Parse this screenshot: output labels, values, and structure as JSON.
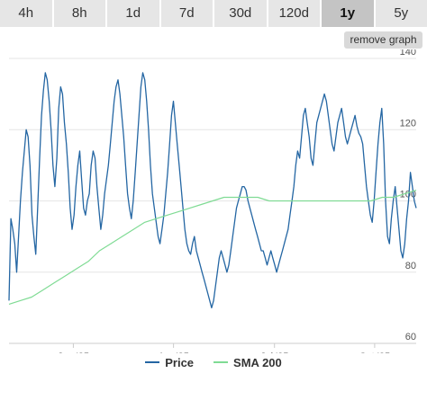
{
  "tabs": [
    {
      "label": "4h",
      "active": false
    },
    {
      "label": "8h",
      "active": false
    },
    {
      "label": "1d",
      "active": false
    },
    {
      "label": "7d",
      "active": false
    },
    {
      "label": "30d",
      "active": false
    },
    {
      "label": "120d",
      "active": false
    },
    {
      "label": "1y",
      "active": true
    },
    {
      "label": "5y",
      "active": false
    }
  ],
  "remove_graph_label": "remove graph",
  "chart_data": {
    "type": "line",
    "xlabels": [
      "Jan '25",
      "Apr '25",
      "Jul '25",
      "Oct '25"
    ],
    "x_tick_positions": [
      0.158,
      0.404,
      0.652,
      0.898
    ],
    "ylim": [
      60,
      140
    ],
    "yticks": [
      60,
      80,
      100,
      120,
      140
    ],
    "grid": true,
    "legend_position": "bottom-center",
    "series": [
      {
        "name": "Price",
        "color": "#2466a3",
        "values": [
          72,
          95,
          92,
          88,
          80,
          90,
          100,
          108,
          114,
          120,
          118,
          110,
          96,
          90,
          85,
          98,
          112,
          124,
          131,
          136,
          134,
          128,
          120,
          110,
          104,
          112,
          126,
          132,
          130,
          122,
          116,
          108,
          98,
          92,
          96,
          104,
          110,
          114,
          106,
          98,
          96,
          100,
          102,
          110,
          114,
          112,
          104,
          98,
          92,
          96,
          102,
          106,
          110,
          116,
          122,
          128,
          132,
          134,
          130,
          124,
          118,
          110,
          102,
          98,
          95,
          100,
          108,
          116,
          124,
          132,
          136,
          134,
          128,
          120,
          110,
          102,
          98,
          94,
          90,
          88,
          92,
          96,
          102,
          108,
          116,
          124,
          128,
          122,
          116,
          110,
          104,
          98,
          92,
          88,
          86,
          85,
          88,
          90,
          86,
          84,
          82,
          80,
          78,
          76,
          74,
          72,
          70,
          72,
          76,
          80,
          84,
          86,
          84,
          82,
          80,
          82,
          86,
          90,
          94,
          98,
          100,
          102,
          104,
          104,
          103,
          100,
          98,
          96,
          94,
          92,
          90,
          88,
          86,
          86,
          84,
          82,
          84,
          86,
          84,
          82,
          80,
          82,
          84,
          86,
          88,
          90,
          92,
          96,
          100,
          104,
          110,
          114,
          112,
          118,
          124,
          126,
          122,
          118,
          112,
          110,
          116,
          122,
          124,
          126,
          128,
          130,
          128,
          124,
          120,
          116,
          114,
          118,
          122,
          124,
          126,
          122,
          118,
          116,
          118,
          120,
          122,
          124,
          121,
          119,
          118,
          116,
          110,
          104,
          100,
          96,
          94,
          100,
          108,
          116,
          122,
          126,
          116,
          100,
          90,
          88,
          95,
          100,
          104,
          98,
          92,
          86,
          84,
          88,
          95,
          100,
          108,
          104,
          100,
          98
        ]
      },
      {
        "name": "SMA 200",
        "color": "#7fdb94",
        "values": [
          71,
          72,
          73,
          75,
          77,
          79,
          81,
          83,
          86,
          88,
          90,
          92,
          94,
          95,
          96,
          97,
          98,
          99,
          100,
          101,
          101,
          101,
          101,
          100,
          100,
          100,
          100,
          100,
          100,
          100,
          100,
          100,
          100,
          101,
          101,
          102,
          103
        ]
      }
    ]
  },
  "legend": {
    "price_label": "Price",
    "sma_label": "SMA 200"
  }
}
